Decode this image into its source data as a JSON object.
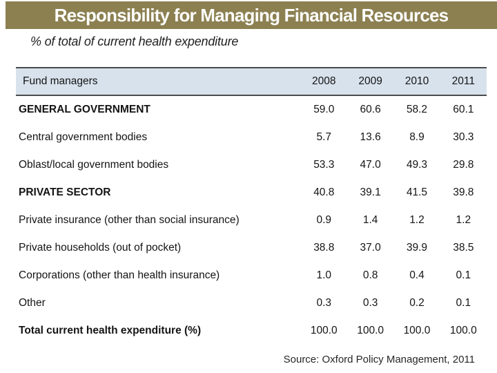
{
  "slide": {
    "title": "Responsibility for Managing Financial Resources",
    "subtitle": "% of total of current health expenditure",
    "source": "Source: Oxford Policy Management, 2011"
  },
  "table": {
    "header": [
      "Fund managers",
      "2008",
      "2009",
      "2010",
      "2011"
    ],
    "rows": [
      {
        "label": "GENERAL GOVERNMENT",
        "bold": true,
        "values": [
          "59.0",
          "60.6",
          "58.2",
          "60.1"
        ]
      },
      {
        "label": "Central government bodies",
        "bold": false,
        "values": [
          "5.7",
          "13.6",
          "8.9",
          "30.3"
        ]
      },
      {
        "label": "Oblast/local government bodies",
        "bold": false,
        "values": [
          "53.3",
          "47.0",
          "49.3",
          "29.8"
        ]
      },
      {
        "label": "PRIVATE SECTOR",
        "bold": true,
        "values": [
          "40.8",
          "39.1",
          "41.5",
          "39.8"
        ]
      },
      {
        "label": "Private insurance (other than social insurance)",
        "bold": false,
        "values": [
          "0.9",
          "1.4",
          "1.2",
          "1.2"
        ]
      },
      {
        "label": "Private households (out of pocket)",
        "bold": false,
        "values": [
          "38.8",
          "37.0",
          "39.9",
          "38.5"
        ]
      },
      {
        "label": "Corporations (other than health insurance)",
        "bold": false,
        "values": [
          "1.0",
          "0.8",
          "0.4",
          "0.1"
        ]
      },
      {
        "label": "Other",
        "bold": false,
        "values": [
          "0.3",
          "0.3",
          "0.2",
          "0.1"
        ]
      },
      {
        "label": "Total current health expenditure (%)",
        "bold": true,
        "values": [
          "100.0",
          "100.0",
          "100.0",
          "100.0"
        ]
      }
    ]
  },
  "colors": {
    "title_bar_bg": "#8C8051",
    "title_text": "#FDFDFD",
    "header_row_bg": "#D8E2EC",
    "table_border": "#4A4A4A",
    "text": "#141414"
  }
}
